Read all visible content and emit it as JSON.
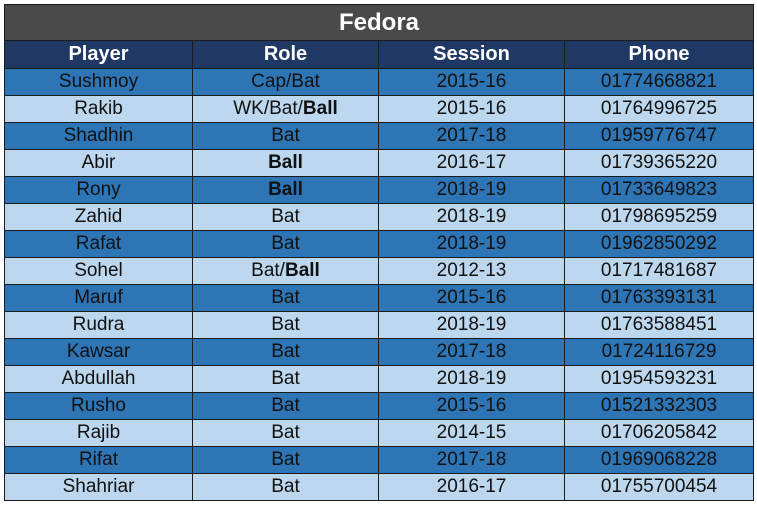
{
  "title": "Fedora",
  "headers": [
    "Player",
    "Role",
    "Session",
    "Phone"
  ],
  "rows": [
    {
      "player": "Sushmoy",
      "role": [
        {
          "t": "Cap/Bat",
          "b": false
        }
      ],
      "session": "2015-16",
      "phone": "01774668821"
    },
    {
      "player": "Rakib",
      "role": [
        {
          "t": "WK/Bat/",
          "b": false
        },
        {
          "t": "Ball",
          "b": true
        }
      ],
      "session": "2015-16",
      "phone": "01764996725"
    },
    {
      "player": "Shadhin",
      "role": [
        {
          "t": "Bat",
          "b": false
        }
      ],
      "session": "2017-18",
      "phone": "01959776747"
    },
    {
      "player": "Abir",
      "role": [
        {
          "t": "Ball",
          "b": true
        }
      ],
      "session": "2016-17",
      "phone": "01739365220"
    },
    {
      "player": "Rony",
      "role": [
        {
          "t": "Ball",
          "b": true
        }
      ],
      "session": "2018-19",
      "phone": "01733649823"
    },
    {
      "player": "Zahid",
      "role": [
        {
          "t": "Bat",
          "b": false
        }
      ],
      "session": "2018-19",
      "phone": "01798695259"
    },
    {
      "player": "Rafat",
      "role": [
        {
          "t": "Bat",
          "b": false
        }
      ],
      "session": "2018-19",
      "phone": "01962850292"
    },
    {
      "player": "Sohel",
      "role": [
        {
          "t": "Bat/",
          "b": false
        },
        {
          "t": "Ball",
          "b": true
        }
      ],
      "session": "2012-13",
      "phone": "01717481687"
    },
    {
      "player": "Maruf",
      "role": [
        {
          "t": "Bat",
          "b": false
        }
      ],
      "session": "2015-16",
      "phone": "01763393131"
    },
    {
      "player": "Rudra",
      "role": [
        {
          "t": "Bat",
          "b": false
        }
      ],
      "session": "2018-19",
      "phone": "01763588451"
    },
    {
      "player": "Kawsar",
      "role": [
        {
          "t": "Bat",
          "b": false
        }
      ],
      "session": "2017-18",
      "phone": "01724116729"
    },
    {
      "player": "Abdullah",
      "role": [
        {
          "t": "Bat",
          "b": false
        }
      ],
      "session": "2018-19",
      "phone": "01954593231"
    },
    {
      "player": "Rusho",
      "role": [
        {
          "t": "Bat",
          "b": false
        }
      ],
      "session": "2015-16",
      "phone": "01521332303"
    },
    {
      "player": "Rajib",
      "role": [
        {
          "t": "Bat",
          "b": false
        }
      ],
      "session": "2014-15",
      "phone": "01706205842"
    },
    {
      "player": "Rifat",
      "role": [
        {
          "t": "Bat",
          "b": false
        }
      ],
      "session": "2017-18",
      "phone": "01969068228"
    },
    {
      "player": "Shahriar",
      "role": [
        {
          "t": "Bat",
          "b": false
        }
      ],
      "session": "2016-17",
      "phone": "01755700454"
    }
  ],
  "colors": {
    "title_bg": "#4a4a4a",
    "header_bg": "#1f3864",
    "row_dark": "#2e75b6",
    "row_light": "#bdd7ee"
  }
}
